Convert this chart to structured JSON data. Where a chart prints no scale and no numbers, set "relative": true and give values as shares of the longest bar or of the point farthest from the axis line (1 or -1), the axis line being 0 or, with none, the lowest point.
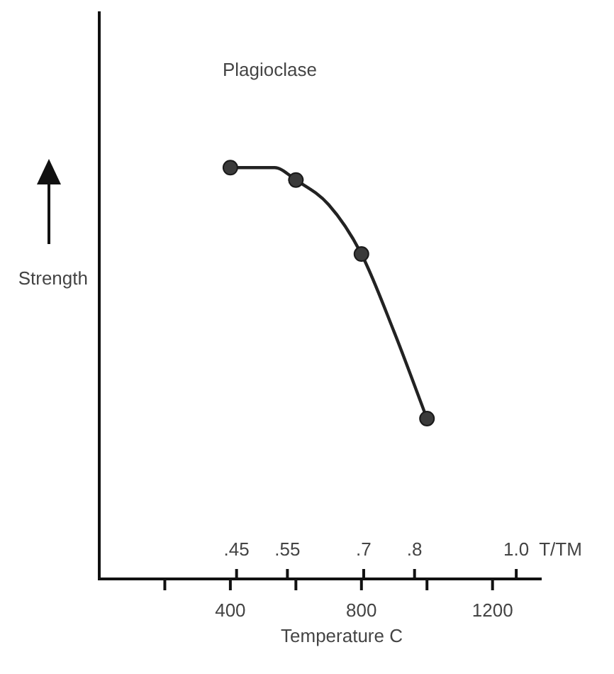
{
  "chart_data": {
    "type": "line",
    "title": "Plagioclase",
    "xlabel": "Temperature C",
    "ylabel": "Strength",
    "x2label": "T/TM",
    "relative": true,
    "xlim": [
      0,
      1350
    ],
    "xticks": [
      {
        "value": 200,
        "label": null
      },
      400,
      {
        "value": 600,
        "label": null
      },
      800,
      {
        "value": 1000,
        "label": null
      },
      1200
    ],
    "x2lim": [
      0.18,
      1.05
    ],
    "x2ticks": [
      {
        "value": 0.45,
        "label": ".45"
      },
      {
        "value": 0.55,
        "label": ".55"
      },
      {
        "value": 0.7,
        "label": ".7"
      },
      {
        "value": 0.8,
        "label": ".8"
      },
      {
        "value": 1,
        "label": "1.0"
      }
    ],
    "grid": false,
    "legend": false,
    "series": [
      {
        "color": "#222222",
        "marker": "none",
        "x": [
          400,
          535,
          600,
          700,
          800,
          900,
          1000
        ],
        "values": [
          1,
          1,
          0.97,
          0.91,
          0.79,
          0.6,
          0.39
        ]
      },
      {
        "type": "scatter",
        "color": "#3a3a3a",
        "marker": "circle",
        "x": [
          400,
          600,
          800,
          1000
        ],
        "values": [
          1,
          0.97,
          0.79,
          0.39
        ]
      }
    ]
  }
}
